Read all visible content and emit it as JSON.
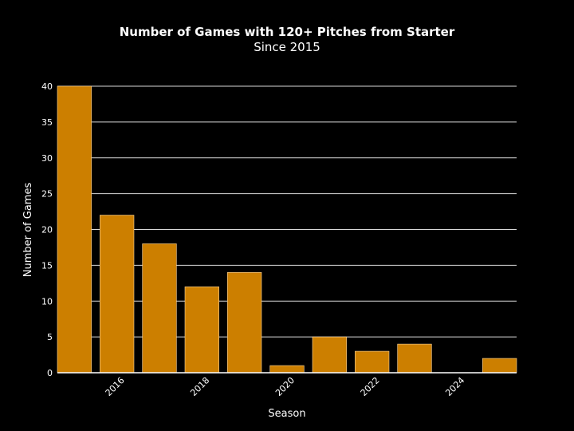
{
  "chart_data": {
    "type": "bar",
    "title": "Number of Games with 120+ Pitches from Starter",
    "subtitle": "Since 2015",
    "xlabel": "Season",
    "ylabel": "Number of Games",
    "x": [
      2015,
      2016,
      2017,
      2018,
      2019,
      2020,
      2021,
      2022,
      2023,
      2024,
      2025
    ],
    "values": [
      40,
      22,
      18,
      12,
      14,
      1,
      5,
      3,
      4,
      0,
      2
    ],
    "ylim": [
      0,
      40
    ],
    "yticks": [
      0,
      5,
      10,
      15,
      20,
      25,
      30,
      35,
      40
    ],
    "xticks": [
      2016,
      2018,
      2020,
      2022,
      2024
    ],
    "xlim": [
      2014.6,
      2025.4
    ],
    "grid": true,
    "bar_color": "#cc7f00",
    "background": "#000000"
  }
}
